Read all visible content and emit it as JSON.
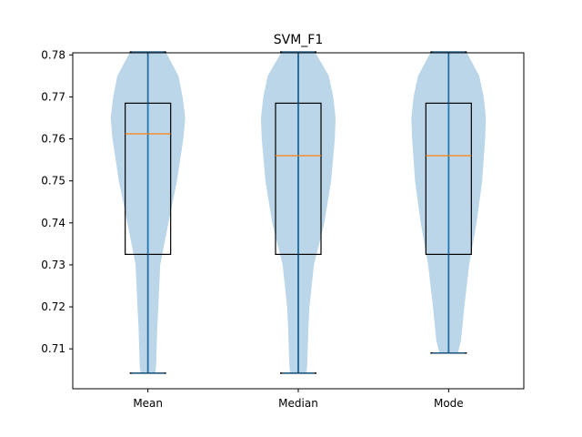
{
  "chart_data": {
    "type": "violin+box",
    "title": "SVM_F1",
    "xlabel": "",
    "ylabel": "",
    "categories": [
      "Mean",
      "Median",
      "Mode"
    ],
    "ylim": [
      0.7005,
      0.7805
    ],
    "yticks": [
      0.71,
      0.72,
      0.73,
      0.74,
      0.75,
      0.76,
      0.77,
      0.78
    ],
    "grid": false,
    "series": [
      {
        "category": "Mean",
        "min": 0.7042,
        "q1": 0.7325,
        "median": 0.7612,
        "q3": 0.7685,
        "max": 0.7807,
        "density": [
          [
            0.7042,
            0.2
          ],
          [
            0.706,
            0.22
          ],
          [
            0.715,
            0.25
          ],
          [
            0.72,
            0.28
          ],
          [
            0.73,
            0.33
          ],
          [
            0.74,
            0.55
          ],
          [
            0.75,
            0.78
          ],
          [
            0.76,
            0.95
          ],
          [
            0.765,
            1.0
          ],
          [
            0.77,
            0.93
          ],
          [
            0.775,
            0.82
          ],
          [
            0.7807,
            0.48
          ]
        ]
      },
      {
        "category": "Median",
        "min": 0.7042,
        "q1": 0.7325,
        "median": 0.756,
        "q3": 0.7685,
        "max": 0.7807,
        "density": [
          [
            0.7042,
            0.22
          ],
          [
            0.706,
            0.24
          ],
          [
            0.715,
            0.27
          ],
          [
            0.72,
            0.3
          ],
          [
            0.73,
            0.42
          ],
          [
            0.74,
            0.7
          ],
          [
            0.75,
            0.88
          ],
          [
            0.76,
            0.98
          ],
          [
            0.765,
            1.0
          ],
          [
            0.77,
            0.94
          ],
          [
            0.775,
            0.82
          ],
          [
            0.7807,
            0.45
          ]
        ]
      },
      {
        "category": "Mode",
        "min": 0.709,
        "q1": 0.7325,
        "median": 0.756,
        "q3": 0.7685,
        "max": 0.7807,
        "density": [
          [
            0.709,
            0.25
          ],
          [
            0.712,
            0.33
          ],
          [
            0.72,
            0.42
          ],
          [
            0.73,
            0.55
          ],
          [
            0.74,
            0.75
          ],
          [
            0.75,
            0.9
          ],
          [
            0.76,
            0.98
          ],
          [
            0.765,
            1.0
          ],
          [
            0.77,
            0.94
          ],
          [
            0.775,
            0.82
          ],
          [
            0.7807,
            0.48
          ]
        ]
      }
    ],
    "colors": {
      "violin": "#1f77b4",
      "violin_alpha": 0.3,
      "median": "#ff7f0e",
      "box": "#000000",
      "extrema": "#1f77b4"
    }
  }
}
